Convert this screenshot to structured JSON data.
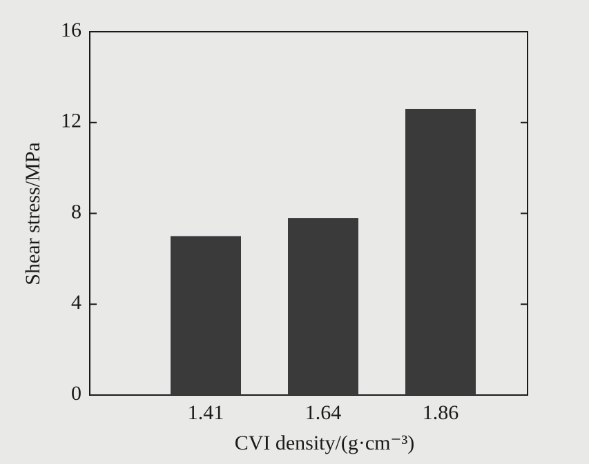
{
  "chart_data": {
    "type": "bar",
    "x_label": "CVI density/(g·cm⁻³)",
    "y_label": "Shear stress/MPa",
    "categories": [
      "1.41",
      "1.64",
      "1.86"
    ],
    "values": [
      7.0,
      7.8,
      12.6
    ],
    "color": "#3a3a3a",
    "ylim": [
      0,
      16
    ],
    "yticks": [
      0,
      4,
      8,
      12,
      16
    ],
    "grid": false
  }
}
